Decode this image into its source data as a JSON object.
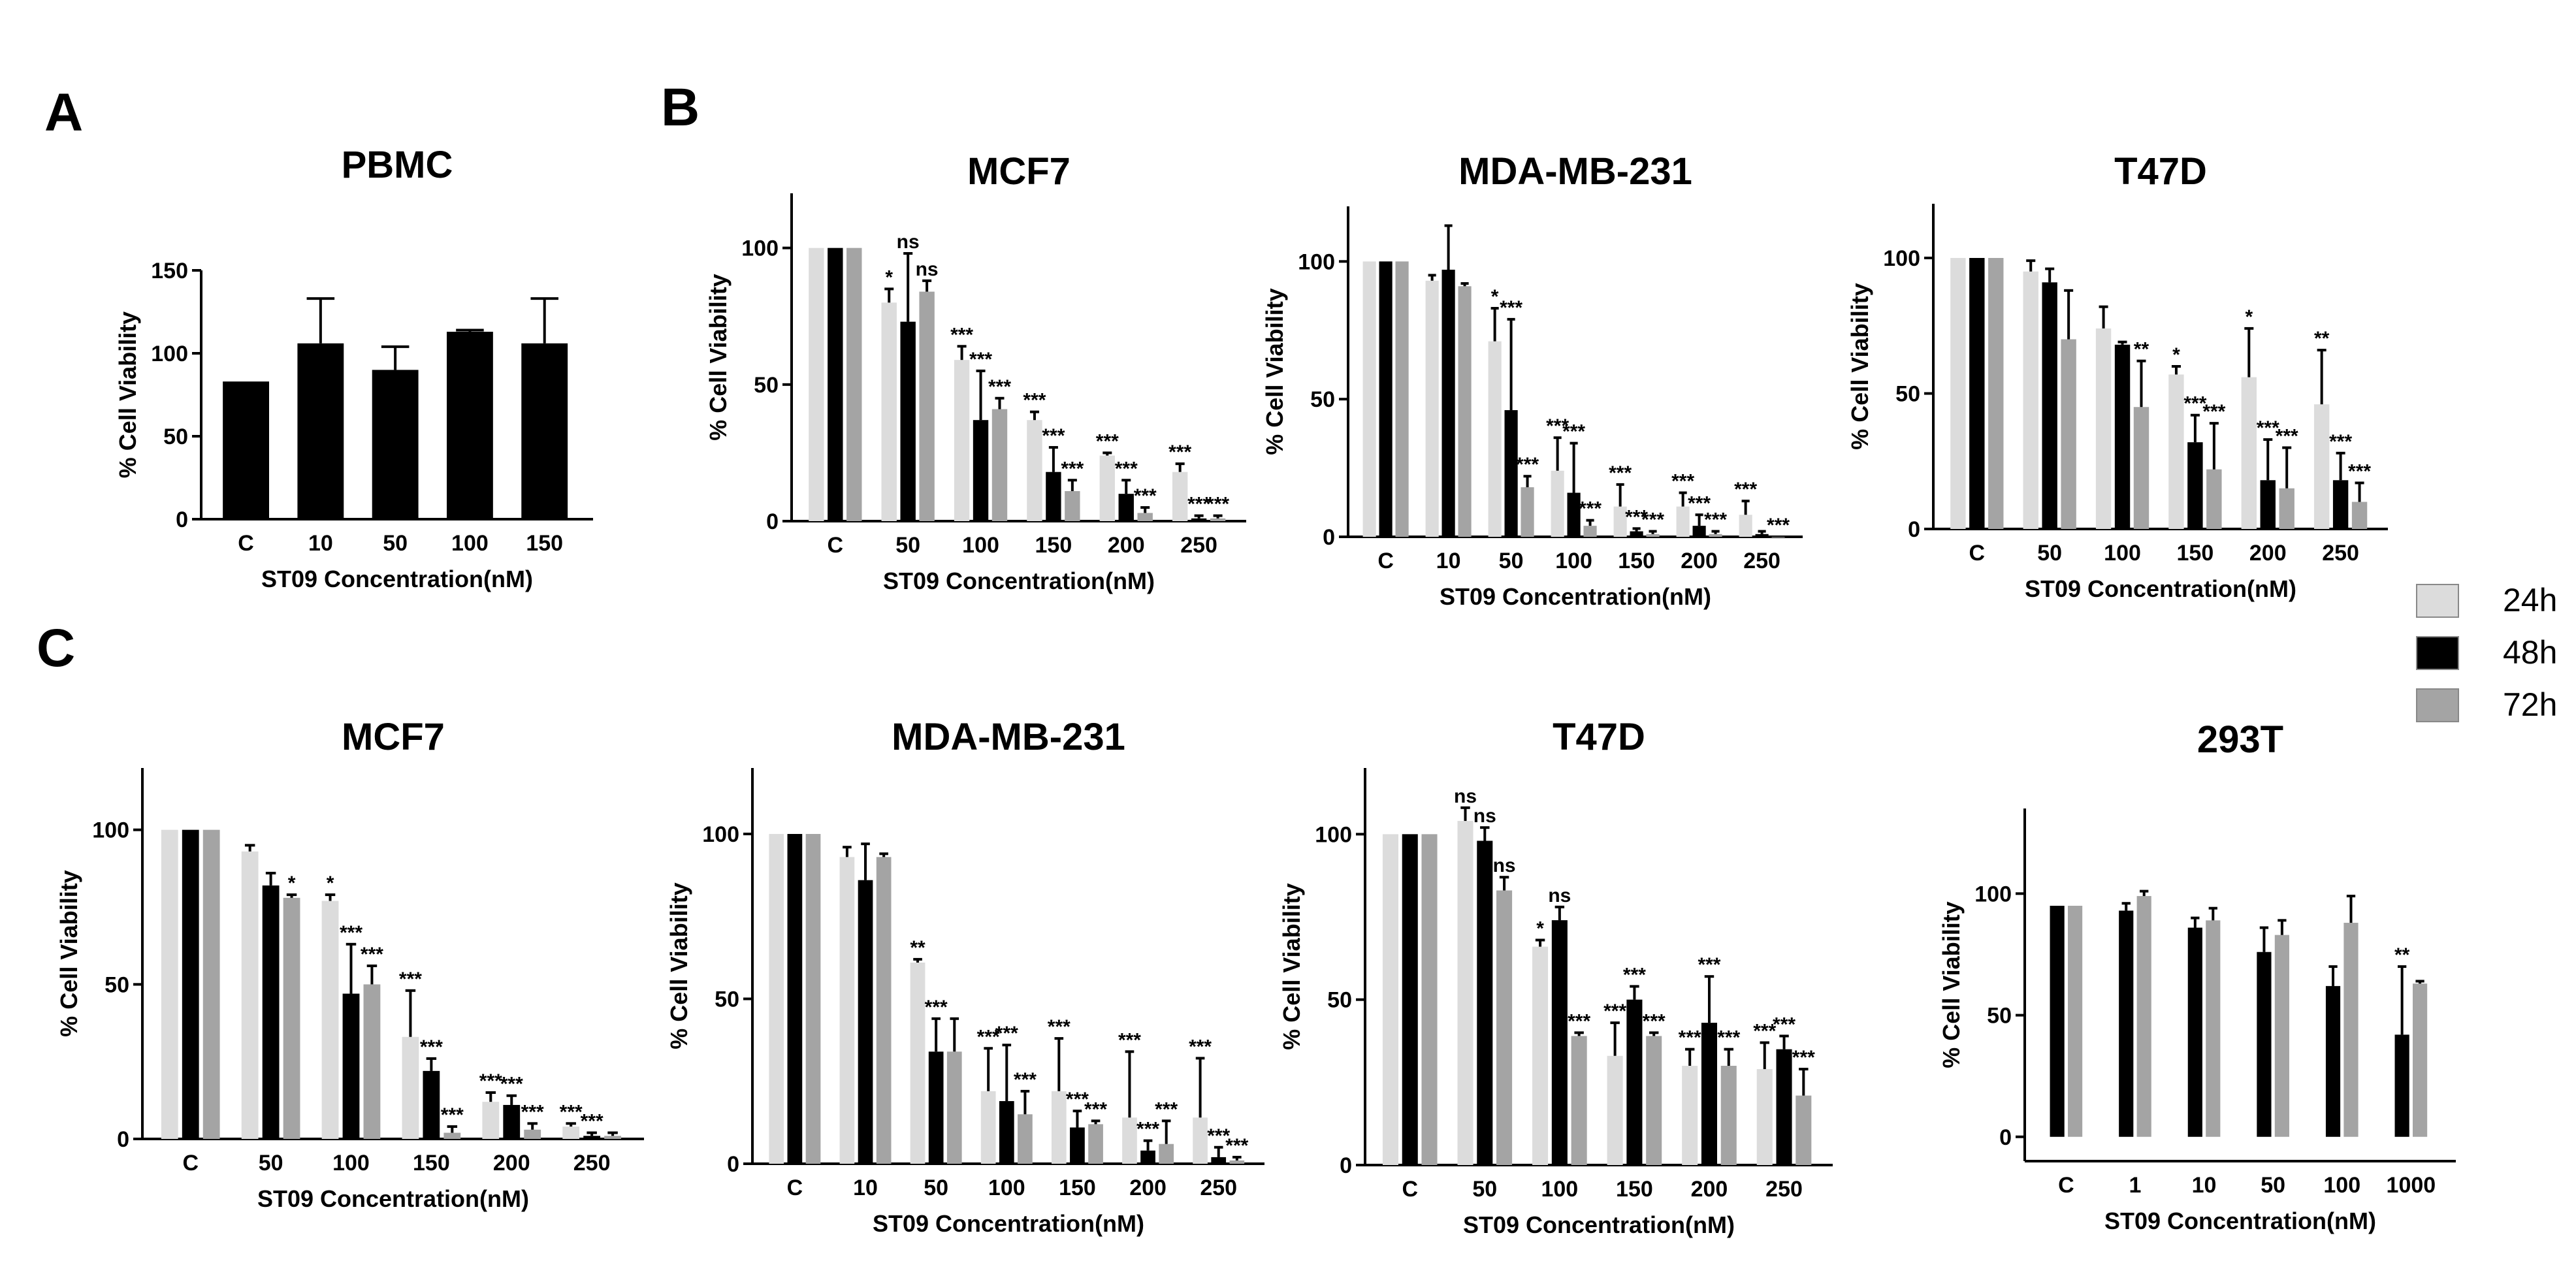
{
  "panels": {
    "A": "A",
    "B": "B",
    "C": "C"
  },
  "legend": {
    "entries": [
      {
        "label": "24h",
        "color": "#dcdcdc"
      },
      {
        "label": "48h",
        "color": "#000000"
      },
      {
        "label": "72h",
        "color": "#a4a4a4"
      }
    ]
  },
  "chart_data": [
    {
      "type": "bar",
      "title": "PBMC",
      "xlabel": "ST09 Concentration(nM)",
      "ylabel": "% Cell Viability",
      "ylim": [
        0,
        150
      ],
      "yticks": [
        0,
        50,
        100,
        150
      ],
      "categories": [
        "C",
        "10",
        "50",
        "100",
        "150"
      ],
      "series": [
        {
          "name": "",
          "color": "#000000",
          "values": [
            83,
            106,
            90,
            113,
            106
          ],
          "errors": [
            0,
            27,
            14,
            1,
            27
          ],
          "sig": [
            "",
            "",
            "",
            "",
            ""
          ]
        }
      ]
    },
    {
      "type": "bar",
      "title": "MCF7",
      "xlabel": "ST09 Concentration(nM)",
      "ylabel": "% Cell Viability",
      "ylim": [
        0,
        120
      ],
      "yticks": [
        0,
        50,
        100
      ],
      "categories": [
        "C",
        "50",
        "100",
        "150",
        "200",
        "250"
      ],
      "series": [
        {
          "name": "24h",
          "color": "#dcdcdc",
          "values": [
            100,
            80,
            59,
            37,
            24,
            18
          ],
          "errors": [
            0,
            5,
            5,
            3,
            1,
            3
          ],
          "sig": [
            "",
            "*",
            "***",
            "***",
            "***",
            "***"
          ]
        },
        {
          "name": "48h",
          "color": "#000000",
          "values": [
            100,
            73,
            37,
            18,
            10,
            1
          ],
          "errors": [
            0,
            25,
            18,
            9,
            5,
            1
          ],
          "sig": [
            "",
            "ns",
            "***",
            "***",
            "***",
            "***"
          ]
        },
        {
          "name": "72h",
          "color": "#a4a4a4",
          "values": [
            100,
            84,
            41,
            11,
            3,
            1
          ],
          "errors": [
            0,
            4,
            4,
            4,
            2,
            1
          ],
          "sig": [
            "",
            "ns",
            "***",
            "***",
            "***",
            "***"
          ]
        }
      ]
    },
    {
      "type": "bar",
      "title": "MDA-MB-231",
      "xlabel": "ST09 Concentration(nM)",
      "ylabel": "% Cell Viability",
      "ylim": [
        0,
        120
      ],
      "yticks": [
        0,
        50,
        100
      ],
      "categories": [
        "C",
        "10",
        "50",
        "100",
        "150",
        "200",
        "250"
      ],
      "series": [
        {
          "name": "24h",
          "color": "#dcdcdc",
          "values": [
            100,
            93,
            71,
            24,
            11,
            11,
            8
          ],
          "errors": [
            0,
            2,
            12,
            12,
            8,
            5,
            5
          ],
          "sig": [
            "",
            "",
            "*",
            "***",
            "***",
            "***",
            "***"
          ]
        },
        {
          "name": "48h",
          "color": "#000000",
          "values": [
            100,
            97,
            46,
            16,
            2,
            4,
            1
          ],
          "errors": [
            0,
            16,
            33,
            18,
            1,
            4,
            1
          ],
          "sig": [
            "",
            "",
            "***",
            "***",
            "***",
            "***",
            ""
          ]
        },
        {
          "name": "72h",
          "color": "#a4a4a4",
          "values": [
            100,
            91,
            18,
            4,
            1,
            1,
            0
          ],
          "errors": [
            0,
            1,
            4,
            2,
            1,
            1,
            0
          ],
          "sig": [
            "",
            "",
            "***",
            "***",
            "***",
            "***",
            "***"
          ]
        }
      ]
    },
    {
      "type": "bar",
      "title": "T47D",
      "xlabel": "ST09 Concentration(nM)",
      "ylabel": "% Cell Viability",
      "ylim": [
        0,
        120
      ],
      "yticks": [
        0,
        50,
        100
      ],
      "categories": [
        "C",
        "50",
        "100",
        "150",
        "200",
        "250"
      ],
      "series": [
        {
          "name": "24h",
          "color": "#dcdcdc",
          "values": [
            100,
            95,
            74,
            57,
            56,
            46
          ],
          "errors": [
            0,
            4,
            8,
            3,
            18,
            20
          ],
          "sig": [
            "",
            "",
            "",
            "*",
            "*",
            "**"
          ]
        },
        {
          "name": "48h",
          "color": "#000000",
          "values": [
            100,
            91,
            68,
            32,
            18,
            18
          ],
          "errors": [
            0,
            5,
            1,
            10,
            15,
            10
          ],
          "sig": [
            "",
            "",
            "",
            "***",
            "***",
            "***"
          ]
        },
        {
          "name": "72h",
          "color": "#a4a4a4",
          "values": [
            100,
            70,
            45,
            22,
            15,
            10
          ],
          "errors": [
            0,
            18,
            17,
            17,
            15,
            7
          ],
          "sig": [
            "",
            "",
            "**",
            "***",
            "***",
            "***"
          ]
        }
      ]
    },
    {
      "type": "bar",
      "title": "MCF7",
      "xlabel": "ST09 Concentration(nM)",
      "ylabel": "% Cell Viability",
      "ylim": [
        0,
        120
      ],
      "yticks": [
        0,
        50,
        100
      ],
      "categories": [
        "C",
        "50",
        "100",
        "150",
        "200",
        "250"
      ],
      "series": [
        {
          "name": "24h",
          "color": "#dcdcdc",
          "values": [
            100,
            93,
            77,
            33,
            12,
            4
          ],
          "errors": [
            0,
            2,
            2,
            15,
            3,
            1
          ],
          "sig": [
            "",
            "",
            "*",
            "***",
            "***",
            "***"
          ]
        },
        {
          "name": "48h",
          "color": "#000000",
          "values": [
            100,
            82,
            47,
            22,
            11,
            1
          ],
          "errors": [
            0,
            4,
            16,
            4,
            3,
            1
          ],
          "sig": [
            "",
            "",
            "***",
            "***",
            "***",
            "***"
          ]
        },
        {
          "name": "72h",
          "color": "#a4a4a4",
          "values": [
            100,
            78,
            50,
            2,
            3,
            1
          ],
          "errors": [
            0,
            1,
            6,
            2,
            2,
            1
          ],
          "sig": [
            "",
            "*",
            "***",
            "***",
            "***",
            ""
          ]
        }
      ]
    },
    {
      "type": "bar",
      "title": "MDA-MB-231",
      "xlabel": "ST09 Concentration(nM)",
      "ylabel": "% Cell Viability",
      "ylim": [
        0,
        120
      ],
      "yticks": [
        0,
        50,
        100
      ],
      "categories": [
        "C",
        "10",
        "50",
        "100",
        "150",
        "200",
        "250"
      ],
      "series": [
        {
          "name": "24h",
          "color": "#dcdcdc",
          "values": [
            100,
            93,
            61,
            22,
            22,
            14,
            14
          ],
          "errors": [
            0,
            3,
            1,
            13,
            16,
            20,
            18
          ],
          "sig": [
            "",
            "",
            "**",
            "***",
            "***",
            "***",
            "***"
          ]
        },
        {
          "name": "48h",
          "color": "#000000",
          "values": [
            100,
            86,
            34,
            19,
            11,
            4,
            2
          ],
          "errors": [
            0,
            11,
            10,
            17,
            5,
            3,
            3
          ],
          "sig": [
            "",
            "",
            "***",
            "***",
            "***",
            "***",
            "***"
          ]
        },
        {
          "name": "72h",
          "color": "#a4a4a4",
          "values": [
            100,
            93,
            34,
            15,
            12,
            6,
            1
          ],
          "errors": [
            0,
            1,
            10,
            7,
            1,
            7,
            1
          ],
          "sig": [
            "",
            "",
            "",
            "***",
            "***",
            "***",
            "***"
          ]
        }
      ]
    },
    {
      "type": "bar",
      "title": "T47D",
      "xlabel": "ST09 Concentration(nM)",
      "ylabel": "% Cell Viability",
      "ylim": [
        0,
        120
      ],
      "yticks": [
        0,
        50,
        100
      ],
      "categories": [
        "C",
        "50",
        "100",
        "150",
        "200",
        "250"
      ],
      "series": [
        {
          "name": "24h",
          "color": "#dcdcdc",
          "values": [
            100,
            104,
            66,
            33,
            30,
            29
          ],
          "errors": [
            0,
            4,
            2,
            10,
            5,
            8
          ],
          "sig": [
            "",
            "ns",
            "*",
            "***",
            "***",
            "***"
          ]
        },
        {
          "name": "48h",
          "color": "#000000",
          "values": [
            100,
            98,
            74,
            50,
            43,
            35
          ],
          "errors": [
            0,
            4,
            4,
            4,
            14,
            4
          ],
          "sig": [
            "",
            "ns",
            "ns",
            "***",
            "***",
            "***"
          ]
        },
        {
          "name": "72h",
          "color": "#a4a4a4",
          "values": [
            100,
            83,
            39,
            39,
            30,
            21
          ],
          "errors": [
            0,
            4,
            1,
            1,
            5,
            8
          ],
          "sig": [
            "",
            "ns",
            "***",
            "***",
            "***",
            "***"
          ]
        }
      ]
    },
    {
      "type": "bar",
      "title": "293T",
      "xlabel": "ST09 Concentration(nM)",
      "ylabel": "% Cell Viability",
      "ylim": [
        -10,
        135
      ],
      "yticks": [
        0,
        50,
        100
      ],
      "categories": [
        "C",
        "1",
        "10",
        "50",
        "100",
        "1000"
      ],
      "series": [
        {
          "name": "48h",
          "color": "#000000",
          "values": [
            95,
            93,
            86,
            76,
            62,
            42
          ],
          "errors": [
            0,
            3,
            4,
            10,
            8,
            28
          ],
          "sig": [
            "",
            "",
            "",
            "",
            "",
            "**"
          ]
        },
        {
          "name": "72h",
          "color": "#a4a4a4",
          "values": [
            95,
            99,
            89,
            83,
            88,
            63
          ],
          "errors": [
            0,
            2,
            5,
            6,
            11,
            1
          ],
          "sig": [
            "",
            "",
            "",
            "",
            "",
            ""
          ]
        }
      ]
    }
  ]
}
